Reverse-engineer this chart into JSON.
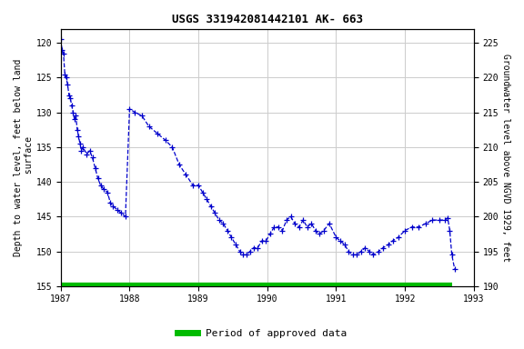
{
  "title": "USGS 331942081442101 AK- 663",
  "ylabel_left": "Depth to water level, feet below land\n surface",
  "ylabel_right": "Groundwater level above NGVD 1929, feet",
  "ylim_left": [
    155,
    118
  ],
  "ylim_right": [
    190,
    227
  ],
  "xlim": [
    1987,
    1993
  ],
  "yticks_left": [
    120,
    125,
    130,
    135,
    140,
    145,
    150,
    155
  ],
  "yticks_right": [
    225,
    220,
    215,
    210,
    205,
    200,
    195,
    190
  ],
  "xticks": [
    1987,
    1988,
    1989,
    1990,
    1991,
    1992,
    1993
  ],
  "grid_color": "#cccccc",
  "line_color": "#0000cc",
  "approved_color": "#00bb00",
  "background": "#ffffff",
  "legend_label": "Period of approved data",
  "data_x": [
    1987.0,
    1987.02,
    1987.04,
    1987.06,
    1987.08,
    1987.1,
    1987.12,
    1987.14,
    1987.16,
    1987.18,
    1987.2,
    1987.22,
    1987.24,
    1987.26,
    1987.28,
    1987.3,
    1987.32,
    1987.38,
    1987.42,
    1987.46,
    1987.5,
    1987.54,
    1987.58,
    1987.62,
    1987.68,
    1987.72,
    1987.76,
    1987.82,
    1987.88,
    1987.94,
    1988.0,
    1988.08,
    1988.18,
    1988.28,
    1988.4,
    1988.52,
    1988.62,
    1988.72,
    1988.82,
    1988.92,
    1989.0,
    1989.06,
    1989.12,
    1989.18,
    1989.24,
    1989.3,
    1989.36,
    1989.42,
    1989.48,
    1989.54,
    1989.6,
    1989.65,
    1989.7,
    1989.75,
    1989.8,
    1989.86,
    1989.92,
    1989.98,
    1990.04,
    1990.1,
    1990.16,
    1990.22,
    1990.28,
    1990.34,
    1990.4,
    1990.46,
    1990.52,
    1990.58,
    1990.64,
    1990.7,
    1990.76,
    1990.82,
    1990.9,
    1991.0,
    1991.06,
    1991.12,
    1991.18,
    1991.24,
    1991.3,
    1991.36,
    1991.42,
    1991.48,
    1991.54,
    1991.62,
    1991.68,
    1991.76,
    1991.82,
    1991.9,
    1992.0,
    1992.1,
    1992.2,
    1992.3,
    1992.4,
    1992.5,
    1992.58,
    1992.62,
    1992.65,
    1992.68,
    1992.72
  ],
  "data_y": [
    119.5,
    121.0,
    121.5,
    124.5,
    125.0,
    126.0,
    127.5,
    128.0,
    129.0,
    130.0,
    131.0,
    130.5,
    132.5,
    133.5,
    134.5,
    135.5,
    135.0,
    136.0,
    135.5,
    136.5,
    138.0,
    139.5,
    140.5,
    141.0,
    141.5,
    143.0,
    143.5,
    144.0,
    144.5,
    145.0,
    129.5,
    130.0,
    130.5,
    132.0,
    133.0,
    134.0,
    135.0,
    137.5,
    139.0,
    140.5,
    140.5,
    141.5,
    142.5,
    143.5,
    144.5,
    145.5,
    146.0,
    147.0,
    148.0,
    149.0,
    150.0,
    150.5,
    150.5,
    150.0,
    149.5,
    149.5,
    148.5,
    148.5,
    147.5,
    146.5,
    146.5,
    147.0,
    145.5,
    145.0,
    146.0,
    146.5,
    145.5,
    146.5,
    146.0,
    147.0,
    147.5,
    147.0,
    146.0,
    148.0,
    148.5,
    149.0,
    150.0,
    150.5,
    150.5,
    150.0,
    149.5,
    150.0,
    150.5,
    150.0,
    149.5,
    149.0,
    148.5,
    148.0,
    147.0,
    146.5,
    146.5,
    146.0,
    145.5,
    145.5,
    145.5,
    145.2,
    147.0,
    150.5,
    152.5
  ]
}
